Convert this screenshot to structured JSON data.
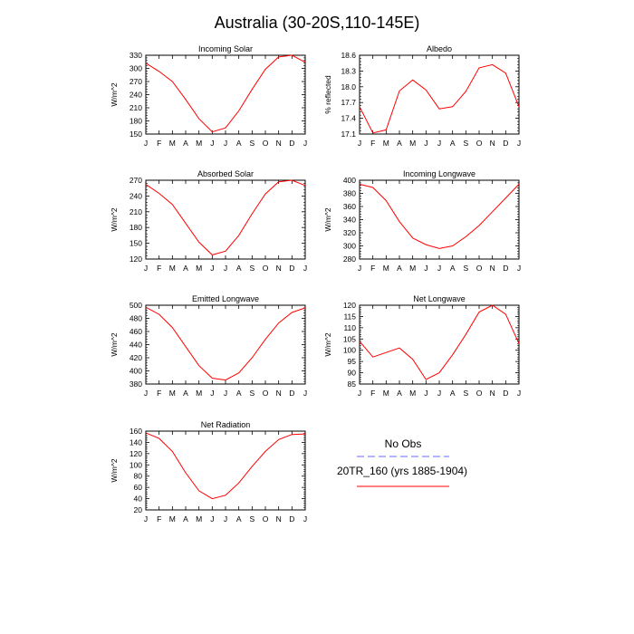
{
  "title": "Australia (30-20S,110-145E)",
  "legend": {
    "entries": [
      {
        "label": "No Obs",
        "color": "#6666ff",
        "style": "dashed"
      },
      {
        "label": "20TR_160 (yrs 1885-1904)",
        "color": "#ff0000",
        "style": "solid"
      }
    ]
  },
  "chart_data": [
    {
      "type": "line",
      "title": "Incoming Solar",
      "ylabel": "W/m^2",
      "ylim": [
        150,
        330
      ],
      "yticks": [
        150,
        180,
        210,
        240,
        270,
        300,
        330
      ],
      "categories": [
        "J",
        "F",
        "M",
        "A",
        "M",
        "J",
        "J",
        "A",
        "S",
        "O",
        "N",
        "D",
        "J"
      ],
      "series": [
        {
          "color": "#ff0000",
          "values": [
            312,
            293,
            270,
            229,
            185,
            155,
            164,
            203,
            252,
            298,
            326,
            330,
            314
          ]
        }
      ]
    },
    {
      "type": "line",
      "title": "Albedo",
      "ylabel": "% reflected",
      "ylim": [
        17.1,
        18.6
      ],
      "yticks": [
        17.1,
        17.4,
        17.7,
        18.0,
        18.3,
        18.6
      ],
      "categories": [
        "J",
        "F",
        "M",
        "A",
        "M",
        "J",
        "J",
        "A",
        "S",
        "O",
        "N",
        "D",
        "J"
      ],
      "series": [
        {
          "color": "#ff0000",
          "values": [
            17.62,
            17.12,
            17.18,
            17.92,
            18.13,
            17.94,
            17.58,
            17.62,
            17.91,
            18.36,
            18.42,
            18.26,
            17.62
          ]
        }
      ]
    },
    {
      "type": "line",
      "title": "Absorbed Solar",
      "ylabel": "W/m^2",
      "ylim": [
        120,
        270
      ],
      "yticks": [
        120,
        150,
        180,
        210,
        240,
        270
      ],
      "categories": [
        "J",
        "F",
        "M",
        "A",
        "M",
        "J",
        "J",
        "A",
        "S",
        "O",
        "N",
        "D",
        "J"
      ],
      "series": [
        {
          "color": "#ff0000",
          "values": [
            262,
            245,
            224,
            188,
            152,
            128,
            135,
            165,
            206,
            244,
            267,
            270,
            260
          ]
        }
      ]
    },
    {
      "type": "line",
      "title": "Incoming Longwave",
      "ylabel": "W/m^2",
      "ylim": [
        280,
        400
      ],
      "yticks": [
        280,
        300,
        320,
        340,
        360,
        380,
        400
      ],
      "categories": [
        "J",
        "F",
        "M",
        "A",
        "M",
        "J",
        "J",
        "A",
        "S",
        "O",
        "N",
        "D",
        "J"
      ],
      "series": [
        {
          "color": "#ff0000",
          "values": [
            394,
            389,
            369,
            337,
            312,
            302,
            296,
            300,
            314,
            331,
            352,
            373,
            394
          ]
        }
      ]
    },
    {
      "type": "line",
      "title": "Emitted Longwave",
      "ylabel": "W/m^2",
      "ylim": [
        380,
        500
      ],
      "yticks": [
        380,
        400,
        420,
        440,
        460,
        480,
        500
      ],
      "categories": [
        "J",
        "F",
        "M",
        "A",
        "M",
        "J",
        "J",
        "A",
        "S",
        "O",
        "N",
        "D",
        "J"
      ],
      "series": [
        {
          "color": "#ff0000",
          "values": [
            497,
            486,
            466,
            437,
            408,
            389,
            386,
            397,
            420,
            448,
            473,
            489,
            496
          ]
        }
      ]
    },
    {
      "type": "line",
      "title": "Net Longwave",
      "ylabel": "W/m^2",
      "ylim": [
        85,
        120
      ],
      "yticks": [
        85,
        90,
        95,
        100,
        105,
        110,
        115,
        120
      ],
      "categories": [
        "J",
        "F",
        "M",
        "A",
        "M",
        "J",
        "J",
        "A",
        "S",
        "O",
        "N",
        "D",
        "J"
      ],
      "series": [
        {
          "color": "#ff0000",
          "values": [
            104,
            97,
            99,
            101,
            96,
            87,
            90,
            98,
            107,
            117,
            120,
            116,
            103
          ]
        }
      ]
    },
    {
      "type": "line",
      "title": "Net Radiation",
      "ylabel": "W/m^2",
      "ylim": [
        20,
        160
      ],
      "yticks": [
        20,
        40,
        60,
        80,
        100,
        120,
        140,
        160
      ],
      "categories": [
        "J",
        "F",
        "M",
        "A",
        "M",
        "J",
        "J",
        "A",
        "S",
        "O",
        "N",
        "D",
        "J"
      ],
      "series": [
        {
          "color": "#ff0000",
          "values": [
            157,
            147,
            124,
            86,
            54,
            40,
            46,
            68,
            97,
            124,
            145,
            154,
            155
          ]
        }
      ]
    }
  ]
}
